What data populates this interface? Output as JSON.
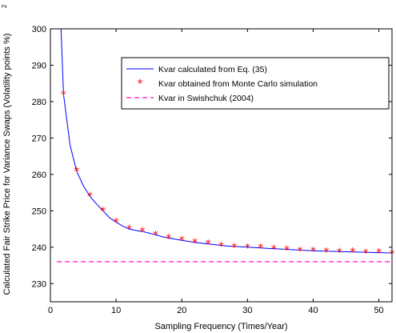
{
  "chart_data": {
    "type": "line",
    "xlabel": "Sampling Frequency (Times/Year)",
    "ylabel": "Calculated Fair Strike Price for Variance Swaps (Volatility points %)",
    "ylabel_superscript": "2",
    "xlim": [
      0,
      52
    ],
    "ylim": [
      225,
      300
    ],
    "xticks": [
      0,
      10,
      20,
      30,
      40,
      50
    ],
    "yticks": [
      230,
      240,
      250,
      260,
      270,
      280,
      290,
      300
    ],
    "grid": false,
    "legend_position": "top-right",
    "series": [
      {
        "name": "Kvar calculated from Eq. (35)",
        "style": "solid-line",
        "color": "#0000ff",
        "x": [
          1,
          2,
          3,
          4,
          5,
          6,
          7,
          8,
          9,
          10,
          11,
          12,
          13,
          14,
          15,
          16,
          17,
          18,
          19,
          20,
          21,
          22,
          23,
          24,
          25,
          26,
          27,
          28,
          29,
          30,
          31,
          32,
          33,
          34,
          35,
          36,
          37,
          38,
          39,
          40,
          41,
          42,
          43,
          44,
          45,
          46,
          47,
          48,
          49,
          50,
          51,
          52
        ],
        "y": [
          329.4,
          282.0,
          268.0,
          260.9,
          256.9,
          254.0,
          251.9,
          250.0,
          248.1,
          246.9,
          245.8,
          245.0,
          244.6,
          244.3,
          243.9,
          243.4,
          242.9,
          242.5,
          242.2,
          241.9,
          241.6,
          241.3,
          241.1,
          240.9,
          240.7,
          240.5,
          240.3,
          240.2,
          240.1,
          240.0,
          239.9,
          239.8,
          239.7,
          239.6,
          239.5,
          239.4,
          239.3,
          239.2,
          239.1,
          239.0,
          238.95,
          238.9,
          238.85,
          238.8,
          238.75,
          238.7,
          238.65,
          238.6,
          238.55,
          238.5,
          238.45,
          238.4
        ]
      },
      {
        "name": "Kvar obtained from Monte Carlo simulation",
        "style": "asterisk-markers",
        "color": "#ff0000",
        "x": [
          2,
          4,
          6,
          8,
          10,
          12,
          14,
          16,
          18,
          20,
          22,
          24,
          26,
          28,
          30,
          32,
          34,
          36,
          38,
          40,
          42,
          44,
          46,
          48,
          50,
          52
        ],
        "y": [
          282.0,
          260.9,
          254.0,
          250.0,
          246.9,
          245.0,
          244.3,
          243.4,
          242.5,
          241.9,
          241.3,
          240.9,
          240.3,
          240.0,
          239.9,
          239.8,
          239.5,
          239.3,
          239.0,
          239.0,
          238.8,
          238.6,
          238.7,
          238.4,
          238.5,
          238.2
        ]
      },
      {
        "name": "Kvar in Swishchuk (2004)",
        "style": "dashed-line",
        "color": "#ff33cc",
        "x": [
          1,
          52
        ],
        "y": [
          236.0,
          236.0
        ]
      }
    ]
  }
}
